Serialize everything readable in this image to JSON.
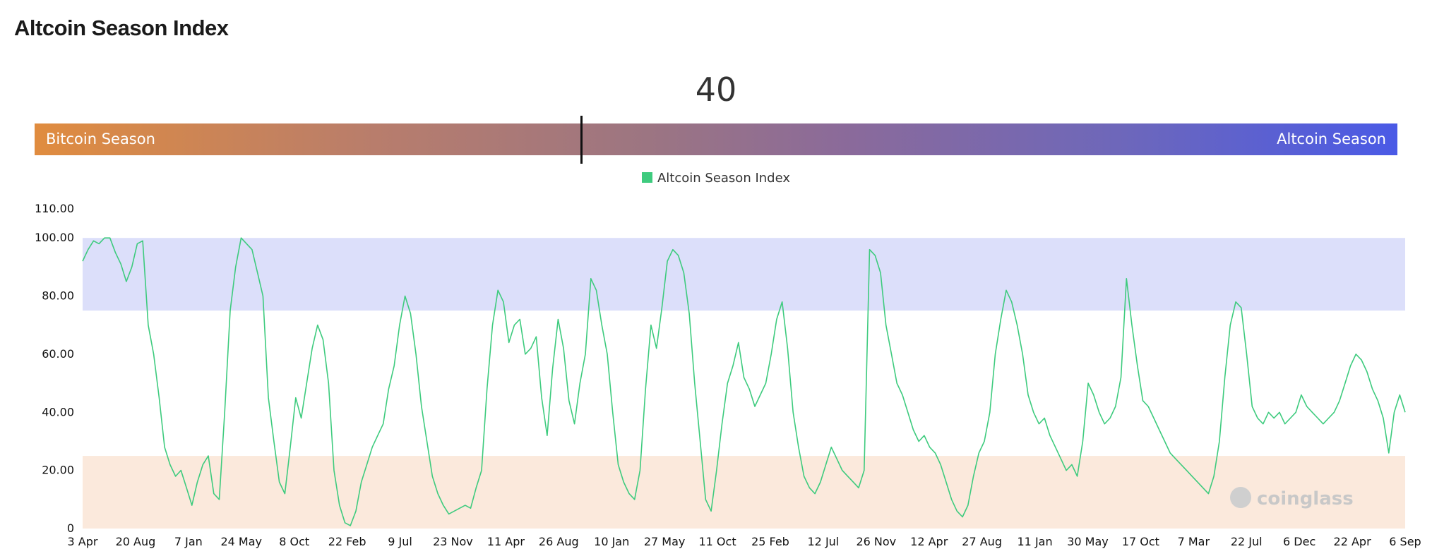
{
  "page": {
    "title": "Altcoin Season Index"
  },
  "gauge": {
    "value": "40",
    "left_label": "Bitcoin Season",
    "right_label": "Altcoin Season"
  },
  "watermark": "coinglass",
  "chart_data": {
    "type": "line",
    "series": [
      {
        "name": "Altcoin Season Index",
        "color": "#3ecb7e",
        "values": [
          92,
          96,
          99,
          98,
          100,
          100,
          95,
          91,
          85,
          90,
          98,
          99,
          70,
          60,
          45,
          28,
          22,
          18,
          20,
          14,
          8,
          16,
          22,
          25,
          12,
          10,
          40,
          75,
          90,
          100,
          98,
          96,
          88,
          80,
          45,
          30,
          16,
          12,
          28,
          45,
          38,
          50,
          62,
          70,
          65,
          50,
          20,
          8,
          2,
          1,
          6,
          16,
          22,
          28,
          32,
          36,
          48,
          56,
          70,
          80,
          74,
          60,
          42,
          30,
          18,
          12,
          8,
          5,
          6,
          7,
          8,
          7,
          14,
          20,
          48,
          70,
          82,
          78,
          64,
          70,
          72,
          60,
          62,
          66,
          45,
          32,
          55,
          72,
          62,
          44,
          36,
          50,
          60,
          86,
          82,
          70,
          60,
          40,
          22,
          16,
          12,
          10,
          20,
          48,
          70,
          62,
          76,
          92,
          96,
          94,
          88,
          74,
          50,
          30,
          10,
          6,
          20,
          36,
          50,
          56,
          64,
          52,
          48,
          42,
          46,
          50,
          60,
          72,
          78,
          62,
          40,
          28,
          18,
          14,
          12,
          16,
          22,
          28,
          24,
          20,
          18,
          16,
          14,
          20,
          96,
          94,
          88,
          70,
          60,
          50,
          46,
          40,
          34,
          30,
          32,
          28,
          26,
          22,
          16,
          10,
          6,
          4,
          8,
          18,
          26,
          30,
          40,
          60,
          72,
          82,
          78,
          70,
          60,
          46,
          40,
          36,
          38,
          32,
          28,
          24,
          20,
          22,
          18,
          30,
          50,
          46,
          40,
          36,
          38,
          42,
          52,
          86,
          70,
          56,
          44,
          42,
          38,
          34,
          30,
          26,
          24,
          22,
          20,
          18,
          16,
          14,
          12,
          18,
          30,
          52,
          70,
          78,
          76,
          60,
          42,
          38,
          36,
          40,
          38,
          40,
          36,
          38,
          40,
          46,
          42,
          40,
          38,
          36,
          38,
          40,
          44,
          50,
          56,
          60,
          58,
          54,
          48,
          44,
          38,
          26,
          40,
          46,
          40
        ]
      }
    ],
    "x_tick_labels": [
      "3 Apr",
      "20 Aug",
      "7 Jan",
      "24 May",
      "8 Oct",
      "22 Feb",
      "9 Jul",
      "23 Nov",
      "11 Apr",
      "26 Aug",
      "10 Jan",
      "27 May",
      "11 Oct",
      "25 Feb",
      "12 Jul",
      "26 Nov",
      "12 Apr",
      "27 Aug",
      "11 Jan",
      "30 May",
      "17 Oct",
      "7 Mar",
      "22 Jul",
      "6 Dec",
      "22 Apr",
      "6 Sep"
    ],
    "y_tick_labels": [
      "0",
      "20.00",
      "40.00",
      "60.00",
      "80.00",
      "100.00",
      "110.00"
    ],
    "y_ticks": [
      0,
      20,
      40,
      60,
      80,
      100,
      110
    ],
    "ylim": [
      0,
      110
    ],
    "bands": [
      {
        "from": 75,
        "to": 100,
        "color": "#dcdffa"
      },
      {
        "from": 0,
        "to": 25,
        "color": "#fbe9dc"
      }
    ],
    "grid": false,
    "legend_position": "top-center"
  }
}
